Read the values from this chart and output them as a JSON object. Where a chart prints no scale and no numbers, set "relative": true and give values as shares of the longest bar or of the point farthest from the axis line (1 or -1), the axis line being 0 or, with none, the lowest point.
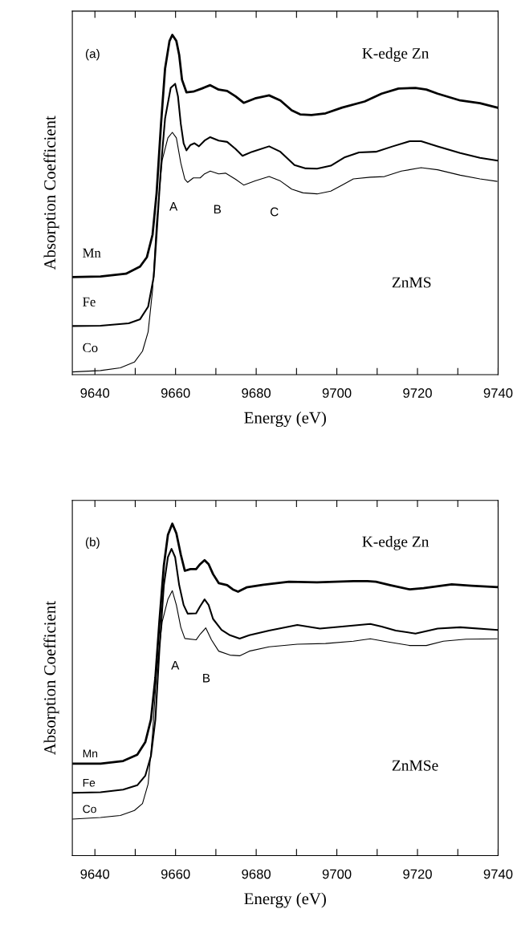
{
  "chart_data": [
    {
      "type": "line",
      "relative": true,
      "xlabel": "Energy (eV)",
      "ylabel": "Absorption Coefficient",
      "xlim": [
        9634.4,
        9740
      ],
      "xticks": [
        9640,
        {
          "value": 9650,
          "label": null
        },
        9660,
        {
          "value": 9670,
          "label": null
        },
        9680,
        {
          "value": 9690,
          "label": null
        },
        9700,
        {
          "value": 9710,
          "label": null
        },
        9720,
        {
          "value": 9730,
          "label": null
        },
        9740
      ],
      "grid": false,
      "legend": false,
      "marker": "none",
      "line_style": "solid",
      "annotations": [
        "(a)",
        "K-edge Zn",
        "ZnMS",
        "A",
        "B",
        "C"
      ],
      "series": [
        {
          "name": "Mn",
          "color": "#000000",
          "x": [
            9634.4,
            9641.4,
            9647.7,
            9651.2,
            9652.9,
            9654.3,
            9655.3,
            9656.4,
            9657.4,
            9658.5,
            9659.2,
            9660.2,
            9660.9,
            9661.6,
            9662.7,
            9664.4,
            9666.5,
            9668.6,
            9670.7,
            9672.8,
            9674.9,
            9676.9,
            9679.7,
            9683.2,
            9686.0,
            9688.8,
            9690.9,
            9693.7,
            9697.2,
            9701.3,
            9706.9,
            9711.1,
            9715.3,
            9719.5,
            9722.2,
            9725.0,
            9730.6,
            9735.5,
            9739.7
          ],
          "values": [
            0.287,
            0.289,
            0.297,
            0.318,
            0.346,
            0.412,
            0.534,
            0.738,
            0.901,
            0.982,
            1.0,
            0.982,
            0.941,
            0.868,
            0.831,
            0.833,
            0.842,
            0.852,
            0.839,
            0.835,
            0.819,
            0.8,
            0.813,
            0.822,
            0.807,
            0.778,
            0.766,
            0.764,
            0.769,
            0.786,
            0.804,
            0.827,
            0.842,
            0.844,
            0.839,
            0.827,
            0.807,
            0.799,
            0.786
          ]
        },
        {
          "name": "Fe",
          "color": "#000000",
          "x": [
            9634.4,
            9641.4,
            9648.4,
            9651.2,
            9653.2,
            9654.6,
            9655.3,
            9656.4,
            9657.4,
            9658.8,
            9659.9,
            9660.6,
            9661.3,
            9662.0,
            9662.7,
            9663.7,
            9664.7,
            9665.8,
            9667.2,
            9668.6,
            9670.7,
            9672.8,
            9674.9,
            9676.6,
            9679.0,
            9683.2,
            9686.0,
            9689.5,
            9692.3,
            9695.1,
            9698.5,
            9702.0,
            9705.5,
            9709.7,
            9713.9,
            9718.1,
            9720.9,
            9725.0,
            9730.6,
            9735.5,
            9739.7
          ],
          "values": [
            0.143,
            0.144,
            0.151,
            0.163,
            0.2,
            0.289,
            0.412,
            0.615,
            0.754,
            0.844,
            0.856,
            0.819,
            0.738,
            0.681,
            0.66,
            0.676,
            0.681,
            0.672,
            0.689,
            0.699,
            0.689,
            0.685,
            0.664,
            0.644,
            0.656,
            0.672,
            0.656,
            0.617,
            0.607,
            0.606,
            0.615,
            0.64,
            0.654,
            0.656,
            0.672,
            0.687,
            0.687,
            0.672,
            0.652,
            0.638,
            0.63
          ]
        },
        {
          "name": "Co",
          "color": "#000000",
          "x": [
            9634.4,
            9641.4,
            9646.3,
            9649.8,
            9651.8,
            9653.2,
            9654.3,
            9655.3,
            9656.7,
            9658.1,
            9659.2,
            9660.2,
            9661.3,
            9662.3,
            9663.0,
            9664.4,
            9666.1,
            9667.2,
            9668.6,
            9670.7,
            9672.4,
            9674.9,
            9676.9,
            9679.7,
            9683.2,
            9686.0,
            9688.8,
            9691.6,
            9695.1,
            9698.5,
            9701.3,
            9704.1,
            9708.3,
            9711.8,
            9716.0,
            9720.9,
            9725.0,
            9730.6,
            9735.5,
            9739.7
          ],
          "values": [
            0.008,
            0.012,
            0.02,
            0.037,
            0.069,
            0.126,
            0.249,
            0.452,
            0.632,
            0.697,
            0.713,
            0.697,
            0.623,
            0.575,
            0.566,
            0.579,
            0.579,
            0.591,
            0.599,
            0.591,
            0.593,
            0.575,
            0.558,
            0.57,
            0.583,
            0.57,
            0.546,
            0.535,
            0.532,
            0.54,
            0.558,
            0.576,
            0.581,
            0.583,
            0.599,
            0.609,
            0.603,
            0.587,
            0.576,
            0.569
          ]
        }
      ]
    },
    {
      "type": "line",
      "relative": true,
      "xlabel": "Energy (eV)",
      "ylabel": "Absorption Coefficient",
      "xlim": [
        9634.4,
        9740
      ],
      "xticks": [
        9640,
        {
          "value": 9650,
          "label": null
        },
        9660,
        {
          "value": 9670,
          "label": null
        },
        9680,
        {
          "value": 9690,
          "label": null
        },
        9700,
        {
          "value": 9710,
          "label": null
        },
        9720,
        {
          "value": 9730,
          "label": null
        },
        9740
      ],
      "grid": false,
      "legend": false,
      "marker": "none",
      "line_style": "solid",
      "annotations": [
        "(b)",
        "K-edge Zn",
        "ZnMSe",
        "A",
        "B"
      ],
      "series": [
        {
          "name": "Mn",
          "color": "#000000",
          "x": [
            9634.4,
            9641.4,
            9647.0,
            9650.5,
            9652.5,
            9653.9,
            9655.0,
            9656.0,
            9657.1,
            9658.1,
            9659.2,
            9660.2,
            9661.3,
            9662.3,
            9663.7,
            9665.1,
            9666.1,
            9667.2,
            9668.2,
            9669.3,
            9670.7,
            9672.8,
            9674.2,
            9675.5,
            9677.6,
            9681.8,
            9688.1,
            9695.1,
            9704.1,
            9707.6,
            9709.7,
            9713.2,
            9718.1,
            9721.5,
            9728.5,
            9733.4,
            9739.7
          ],
          "values": [
            0.277,
            0.277,
            0.285,
            0.304,
            0.342,
            0.41,
            0.536,
            0.705,
            0.874,
            0.966,
            1.0,
            0.971,
            0.907,
            0.858,
            0.863,
            0.863,
            0.878,
            0.89,
            0.878,
            0.848,
            0.821,
            0.815,
            0.802,
            0.795,
            0.808,
            0.816,
            0.825,
            0.823,
            0.827,
            0.827,
            0.825,
            0.815,
            0.802,
            0.806,
            0.817,
            0.813,
            0.809
          ]
        },
        {
          "name": "Fe",
          "color": "#000000",
          "x": [
            9634.4,
            9641.4,
            9647.0,
            9650.5,
            9652.5,
            9653.9,
            9655.0,
            9656.0,
            9657.1,
            9658.1,
            9659.0,
            9659.9,
            9660.9,
            9662.0,
            9663.0,
            9665.1,
            9666.1,
            9667.2,
            9668.2,
            9669.3,
            9671.4,
            9673.5,
            9675.9,
            9678.3,
            9683.2,
            9690.2,
            9695.8,
            9701.3,
            9708.3,
            9711.1,
            9714.6,
            9719.5,
            9725.0,
            9730.6,
            9739.7
          ],
          "values": [
            0.189,
            0.191,
            0.199,
            0.212,
            0.241,
            0.3,
            0.41,
            0.621,
            0.815,
            0.899,
            0.924,
            0.899,
            0.815,
            0.755,
            0.729,
            0.73,
            0.751,
            0.772,
            0.755,
            0.713,
            0.68,
            0.664,
            0.654,
            0.664,
            0.678,
            0.695,
            0.684,
            0.69,
            0.698,
            0.69,
            0.678,
            0.669,
            0.684,
            0.688,
            0.68
          ]
        },
        {
          "name": "Co",
          "color": "#000000",
          "x": [
            9634.4,
            9641.4,
            9646.3,
            9649.8,
            9651.8,
            9653.2,
            9654.3,
            9655.3,
            9656.7,
            9658.1,
            9659.2,
            9660.2,
            9661.3,
            9662.3,
            9665.1,
            9666.1,
            9667.5,
            9668.9,
            9670.7,
            9673.5,
            9675.9,
            9678.3,
            9683.2,
            9690.2,
            9697.2,
            9704.1,
            9708.3,
            9712.5,
            9718.1,
            9722.2,
            9726.4,
            9732.0,
            9739.7
          ],
          "values": [
            0.11,
            0.115,
            0.121,
            0.136,
            0.157,
            0.216,
            0.368,
            0.553,
            0.705,
            0.772,
            0.798,
            0.755,
            0.688,
            0.654,
            0.65,
            0.667,
            0.686,
            0.65,
            0.616,
            0.604,
            0.602,
            0.616,
            0.629,
            0.637,
            0.639,
            0.646,
            0.653,
            0.644,
            0.633,
            0.633,
            0.646,
            0.652,
            0.653
          ]
        }
      ]
    }
  ]
}
